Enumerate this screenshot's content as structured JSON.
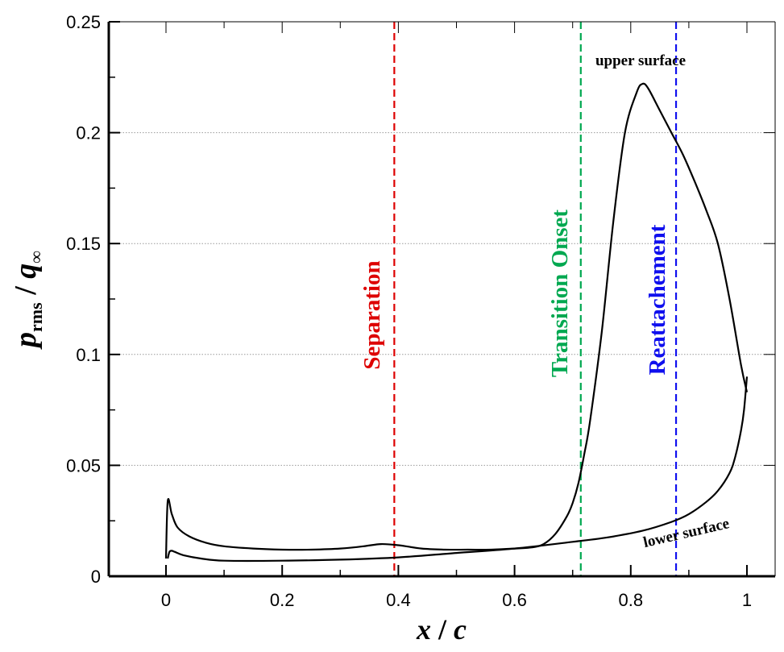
{
  "chart_data": {
    "type": "line",
    "title": "",
    "xlabel_main": "x",
    "xlabel_sep": " / ",
    "xlabel_den": "c",
    "ylabel_p": "p",
    "ylabel_sub": "rms",
    "ylabel_sep": " / ",
    "ylabel_q": "q",
    "ylabel_qsub": "∞",
    "xlim": [
      -0.1,
      1.05
    ],
    "ylim": [
      0,
      0.25
    ],
    "x_ticks": [
      0,
      0.2,
      0.4,
      0.6,
      0.8,
      1
    ],
    "x_tick_labels": [
      "0",
      "0.2",
      "0.4",
      "0.6",
      "0.8",
      "1"
    ],
    "y_ticks": [
      0,
      0.05,
      0.1,
      0.15,
      0.2,
      0.25
    ],
    "y_tick_labels": [
      "0",
      "0.05",
      "0.1",
      "0.15",
      "0.2",
      "0.25"
    ],
    "grid_y": true,
    "series": [
      {
        "name": "upper surface",
        "x": [
          0,
          0.003,
          0.01,
          0.02,
          0.04,
          0.07,
          0.1,
          0.15,
          0.2,
          0.25,
          0.3,
          0.34,
          0.37,
          0.4,
          0.44,
          0.48,
          0.52,
          0.56,
          0.6,
          0.63,
          0.65,
          0.67,
          0.69,
          0.7,
          0.71,
          0.72,
          0.73,
          0.75,
          0.77,
          0.79,
          0.81,
          0.82,
          0.83,
          0.85,
          0.87,
          0.89,
          0.91,
          0.93,
          0.95,
          0.97,
          0.99,
          1.0
        ],
        "y": [
          0.008,
          0.034,
          0.028,
          0.022,
          0.018,
          0.015,
          0.0135,
          0.0125,
          0.012,
          0.012,
          0.0125,
          0.0135,
          0.0145,
          0.014,
          0.0125,
          0.012,
          0.012,
          0.012,
          0.0125,
          0.013,
          0.0145,
          0.019,
          0.027,
          0.033,
          0.042,
          0.055,
          0.07,
          0.11,
          0.16,
          0.2,
          0.218,
          0.222,
          0.22,
          0.21,
          0.2,
          0.19,
          0.178,
          0.165,
          0.15,
          0.125,
          0.095,
          0.083
        ]
      },
      {
        "name": "lower surface",
        "x": [
          0.003,
          0.006,
          0.01,
          0.015,
          0.03,
          0.06,
          0.1,
          0.2,
          0.3,
          0.4,
          0.5,
          0.6,
          0.7,
          0.76,
          0.82,
          0.87,
          0.9,
          0.93,
          0.95,
          0.97,
          0.98,
          0.99,
          0.995,
          1.0
        ],
        "y": [
          0.008,
          0.011,
          0.0115,
          0.011,
          0.0095,
          0.008,
          0.007,
          0.007,
          0.0075,
          0.0085,
          0.0105,
          0.0125,
          0.0155,
          0.0175,
          0.0205,
          0.0245,
          0.028,
          0.0335,
          0.0385,
          0.0465,
          0.054,
          0.066,
          0.075,
          0.09
        ]
      }
    ],
    "markers": [
      {
        "name": "Separation",
        "x": 0.393,
        "color": "#dd0000"
      },
      {
        "name": "Transition Onset",
        "x": 0.714,
        "color": "#00a850"
      },
      {
        "name": "Reattachement",
        "x": 0.878,
        "color": "#1010ee"
      }
    ],
    "annotations": {
      "upper": "upper surface",
      "lower": "lower surface"
    }
  }
}
